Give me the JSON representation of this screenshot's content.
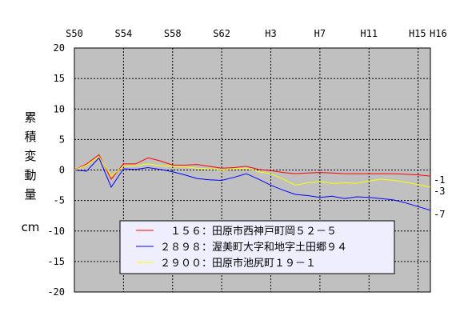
{
  "chart_data": {
    "type": "line",
    "title": "",
    "ylabel": "累積変動量",
    "yunit": "cm",
    "x_tick_labels": [
      "S50",
      "S54",
      "S58",
      "S62",
      "H3",
      "H7",
      "H11",
      "H15",
      "H16"
    ],
    "x_tick_years": [
      1975,
      1979,
      1983,
      1987,
      1991,
      1995,
      1999,
      2003,
      2004
    ],
    "xlim": [
      1975,
      2004
    ],
    "ylim": [
      -20,
      20
    ],
    "y_ticks": [
      20,
      15,
      10,
      5,
      0,
      -5,
      -10,
      -15,
      -20
    ],
    "grid": true,
    "legend_placement": "bottom-center",
    "plot_background": "#c0c0c0",
    "legend_background": "#eeeeff",
    "series": [
      {
        "name": "　１５６：田原市西神戸町岡５２－５",
        "color": "#ff0000",
        "end_label": "-1",
        "x": [
          1975,
          1976,
          1977,
          1978,
          1979,
          1980,
          1981,
          1982,
          1983,
          1984,
          1985,
          1986,
          1987,
          1988,
          1989,
          1990,
          1991,
          1992,
          1993,
          1994,
          1995,
          1996,
          1997,
          1998,
          1999,
          2000,
          2001,
          2002,
          2003,
          2004
        ],
        "y": [
          0,
          1,
          2.5,
          -1.5,
          1,
          1,
          2,
          1.5,
          0.8,
          0.8,
          0.9,
          0.6,
          0.3,
          0.4,
          0.6,
          0.1,
          -0.1,
          -0.4,
          -0.6,
          -0.5,
          -0.4,
          -0.5,
          -0.6,
          -0.6,
          -0.6,
          -0.6,
          -0.6,
          -0.7,
          -0.8,
          -1
        ]
      },
      {
        "name": "２８９８：渥美町大字和地字土田郷９４",
        "color": "#0000ff",
        "end_label": "-7",
        "x": [
          1975,
          1976,
          1977,
          1978,
          1979,
          1980,
          1981,
          1982,
          1983,
          1984,
          1985,
          1986,
          1987,
          1988,
          1989,
          1990,
          1991,
          1992,
          1993,
          1994,
          1995,
          1996,
          1997,
          1998,
          1999,
          2000,
          2001,
          2002,
          2003,
          2004
        ],
        "y": [
          0,
          -0.2,
          2,
          -2.8,
          0.2,
          0.1,
          0.4,
          0.1,
          -0.3,
          -0.8,
          -1.4,
          -1.6,
          -1.7,
          -1.2,
          -0.6,
          -1.5,
          -2.5,
          -3.3,
          -4,
          -4.2,
          -4.5,
          -4.3,
          -4.7,
          -4.4,
          -4.5,
          -4.7,
          -4.9,
          -5.4,
          -6,
          -6.6
        ]
      },
      {
        "name": "２９００：田原市池尻町１９－１",
        "color": "#ffff00",
        "end_label": "-3",
        "x": [
          1975,
          1976,
          1977,
          1978,
          1979,
          1980,
          1981,
          1982,
          1983,
          1984,
          1985,
          1986,
          1987,
          1988,
          1989,
          1990,
          1991,
          1992,
          1993,
          1994,
          1995,
          1996,
          1997,
          1998,
          1999,
          2000,
          2001,
          2002,
          2003,
          2004
        ],
        "y": [
          0,
          0.8,
          2.2,
          -1,
          0.6,
          0.7,
          1,
          0.7,
          0.6,
          0.5,
          0.3,
          0.2,
          0,
          0.2,
          0.3,
          -0.3,
          -0.6,
          -1.5,
          -2.5,
          -2.1,
          -1.9,
          -2.2,
          -2.1,
          -2.2,
          -1.8,
          -1.5,
          -1.7,
          -2,
          -2.4,
          -2.8
        ]
      }
    ]
  }
}
